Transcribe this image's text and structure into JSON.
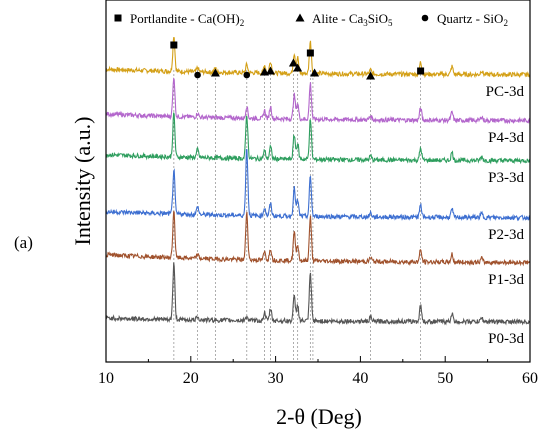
{
  "panel_label": "(a)",
  "chart_data": {
    "type": "line",
    "title": "",
    "xlabel": "2-θ (Deg)",
    "ylabel": "Intensity (a.u.)",
    "xlim": [
      10,
      60
    ],
    "xticks": [
      10,
      20,
      30,
      40,
      50,
      60
    ],
    "y_ticks_shown": false,
    "grid": false,
    "legend_position": "top",
    "legend": [
      {
        "marker": "square",
        "text_main": "Portlandite - Ca(OH)",
        "sub": "2",
        "text_tail": ""
      },
      {
        "marker": "triangle",
        "text_main": "Alite - Ca",
        "sub": "3",
        "text_tail": "SiO",
        "sub2": "5"
      },
      {
        "marker": "circle",
        "text_main": "Quartz - SiO",
        "sub": "2",
        "text_tail": ""
      }
    ],
    "reference_lines_x": [
      18.0,
      20.8,
      22.9,
      26.6,
      28.7,
      29.4,
      32.1,
      32.6,
      34.1,
      34.4,
      41.2,
      47.1
    ],
    "phase_markers": [
      {
        "phase": "Portlandite",
        "marker": "square",
        "x": [
          18.0,
          34.1,
          47.1
        ]
      },
      {
        "phase": "Alite",
        "marker": "triangle",
        "x": [
          22.9,
          28.7,
          29.4,
          32.1,
          32.6,
          34.6,
          41.2
        ]
      },
      {
        "phase": "Quartz",
        "marker": "circle",
        "x": [
          20.8,
          26.6
        ]
      }
    ],
    "series": [
      {
        "name": "PC-3d",
        "color": "#d4a017",
        "peaks": [
          [
            18.0,
            9
          ],
          [
            20.8,
            1
          ],
          [
            22.9,
            1
          ],
          [
            26.6,
            2
          ],
          [
            28.7,
            2
          ],
          [
            29.4,
            3
          ],
          [
            32.2,
            5
          ],
          [
            32.6,
            4
          ],
          [
            34.1,
            8
          ],
          [
            41.2,
            1
          ],
          [
            47.1,
            3
          ],
          [
            50.8,
            2
          ],
          [
            54.3,
            1
          ]
        ]
      },
      {
        "name": "P4-3d",
        "color": "#b366cc",
        "peaks": [
          [
            18.0,
            10
          ],
          [
            20.8,
            1
          ],
          [
            26.6,
            3
          ],
          [
            28.7,
            2
          ],
          [
            29.4,
            3
          ],
          [
            32.2,
            6
          ],
          [
            32.6,
            4
          ],
          [
            34.1,
            9
          ],
          [
            41.2,
            1
          ],
          [
            47.1,
            3
          ],
          [
            50.8,
            2
          ],
          [
            54.3,
            1
          ]
        ]
      },
      {
        "name": "P3-3d",
        "color": "#2e9e5e",
        "peaks": [
          [
            18.0,
            11
          ],
          [
            20.8,
            2
          ],
          [
            26.6,
            11
          ],
          [
            28.7,
            2
          ],
          [
            29.4,
            3
          ],
          [
            32.2,
            6
          ],
          [
            32.6,
            4
          ],
          [
            34.1,
            10
          ],
          [
            41.2,
            1
          ],
          [
            47.1,
            3
          ],
          [
            50.8,
            2
          ],
          [
            54.3,
            1
          ]
        ]
      },
      {
        "name": "P2-3d",
        "color": "#3d6fd1",
        "peaks": [
          [
            18.0,
            11
          ],
          [
            20.8,
            2
          ],
          [
            26.6,
            17
          ],
          [
            28.7,
            2
          ],
          [
            29.4,
            3
          ],
          [
            32.2,
            7
          ],
          [
            32.6,
            4
          ],
          [
            34.1,
            10
          ],
          [
            41.2,
            1
          ],
          [
            47.1,
            3
          ],
          [
            50.8,
            2
          ],
          [
            54.3,
            1
          ]
        ]
      },
      {
        "name": "P1-3d",
        "color": "#a0522d",
        "peaks": [
          [
            18.0,
            12
          ],
          [
            20.8,
            1
          ],
          [
            26.6,
            12
          ],
          [
            28.7,
            2
          ],
          [
            29.4,
            3
          ],
          [
            32.2,
            7
          ],
          [
            32.6,
            4
          ],
          [
            34.1,
            11
          ],
          [
            41.2,
            1
          ],
          [
            47.1,
            3
          ],
          [
            50.8,
            2
          ],
          [
            54.3,
            1
          ]
        ]
      },
      {
        "name": "P0-3d",
        "color": "#555555",
        "peaks": [
          [
            18.0,
            14
          ],
          [
            20.8,
            1
          ],
          [
            26.6,
            1
          ],
          [
            28.7,
            2
          ],
          [
            29.4,
            3
          ],
          [
            32.2,
            6
          ],
          [
            32.6,
            4
          ],
          [
            34.1,
            12
          ],
          [
            41.2,
            1
          ],
          [
            47.1,
            4
          ],
          [
            50.8,
            2
          ],
          [
            54.3,
            1
          ]
        ]
      }
    ]
  }
}
